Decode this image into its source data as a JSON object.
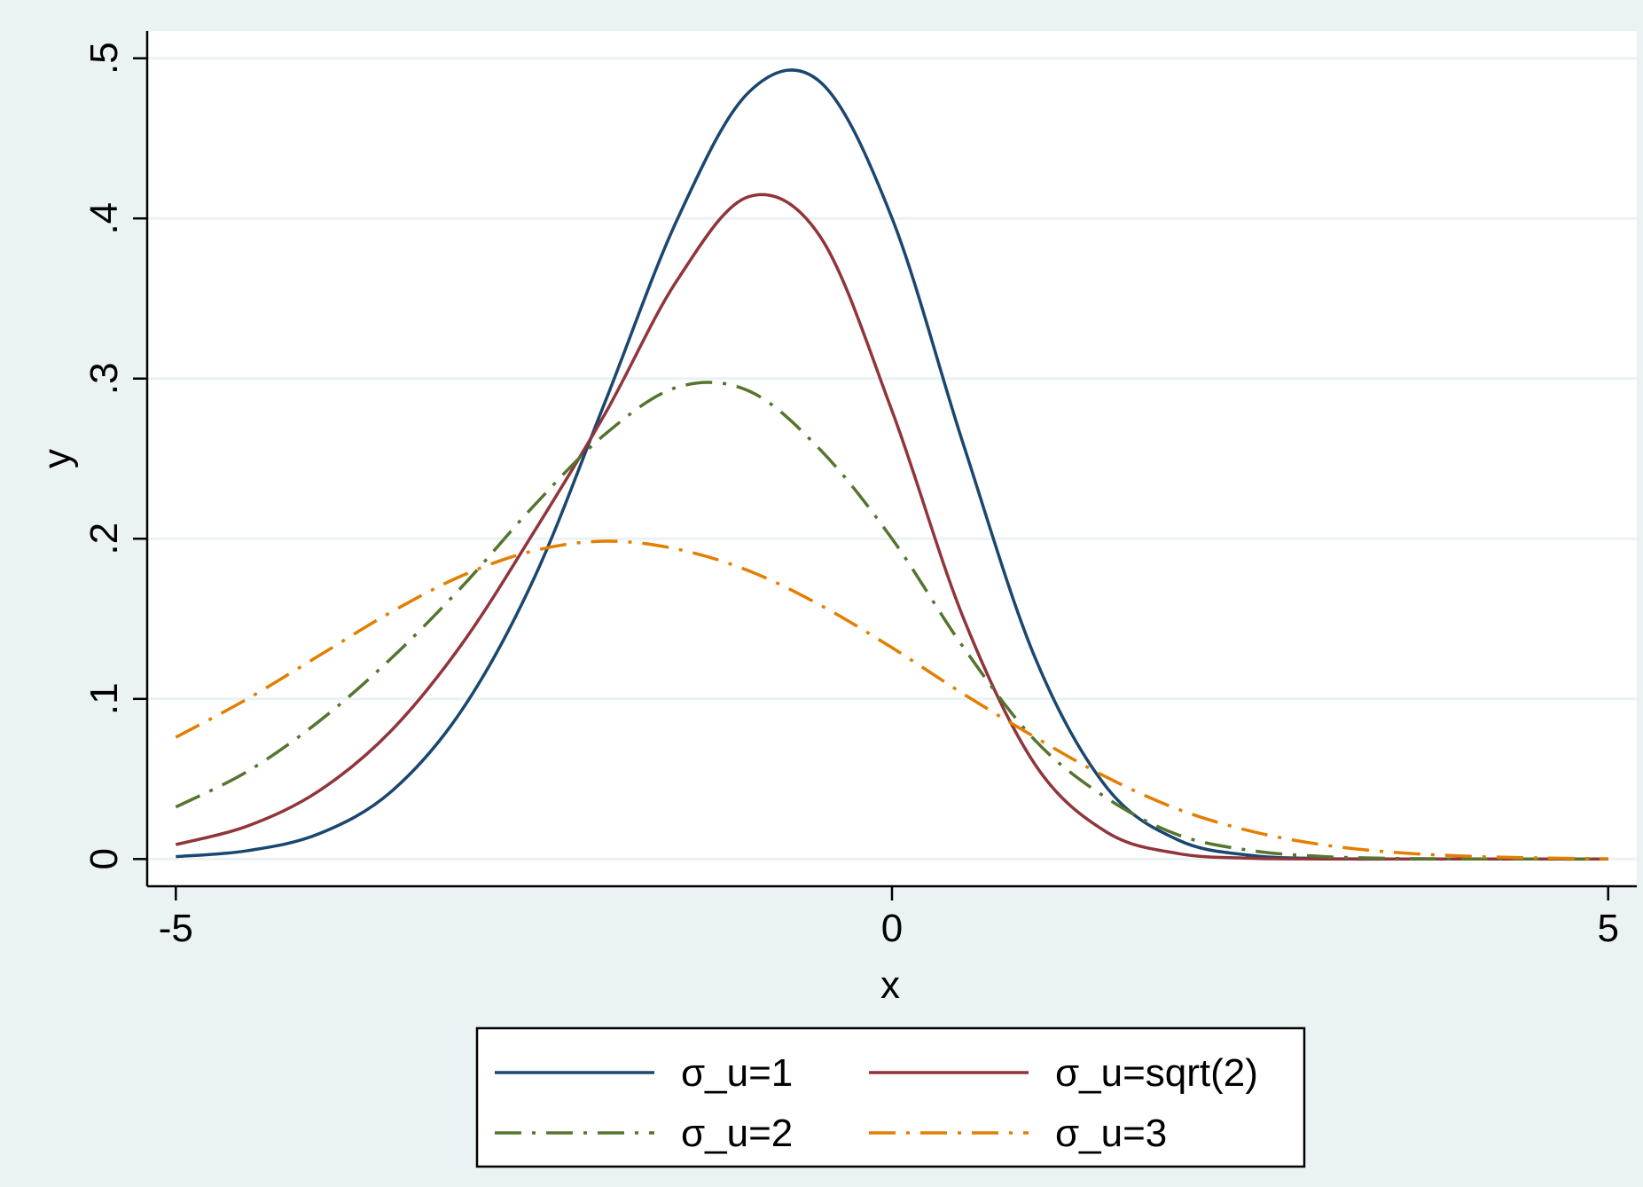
{
  "chart_data": {
    "type": "line",
    "title": "",
    "xlabel": "x",
    "ylabel": "y",
    "xlim": [
      -5.2,
      5.2
    ],
    "ylim": [
      -0.017,
      0.517
    ],
    "xticks": [
      {
        "value": -5,
        "label": "-5"
      },
      {
        "value": 0,
        "label": "0"
      },
      {
        "value": 5,
        "label": "5"
      }
    ],
    "yticks": [
      {
        "value": 0,
        "label": "0"
      },
      {
        "value": 0.1,
        "label": ".1"
      },
      {
        "value": 0.2,
        "label": ".2"
      },
      {
        "value": 0.3,
        "label": ".3"
      },
      {
        "value": 0.4,
        "label": ".4"
      },
      {
        "value": 0.5,
        "label": ".5"
      }
    ],
    "grid": true,
    "legend_position": "bottom",
    "series": [
      {
        "name": "σ_u=1",
        "color": "#1a476f",
        "style": "solid",
        "x": [
          -5,
          -4.5,
          -4,
          -3.5,
          -3,
          -2.5,
          -2,
          -1.5,
          -1,
          -0.5,
          0,
          0.5,
          1,
          1.5,
          2,
          2.5,
          3,
          3.5,
          4,
          4.5,
          5
        ],
        "y": [
          0.0015,
          0.0052,
          0.0158,
          0.0418,
          0.0934,
          0.1751,
          0.2861,
          0.3992,
          0.4788,
          0.4851,
          0.4002,
          0.2585,
          0.1255,
          0.0446,
          0.0118,
          0.0023,
          0.00034,
          4e-05,
          0,
          0,
          0
        ]
      },
      {
        "name": "σ_u=sqrt(2)",
        "color": "#90353b",
        "style": "solid",
        "x": [
          -5,
          -4.5,
          -4,
          -3.5,
          -3,
          -2.5,
          -2,
          -1.5,
          -1,
          -0.5,
          0,
          0.5,
          1,
          1.5,
          2,
          2.5,
          3,
          3.5,
          4,
          4.5,
          5
        ],
        "y": [
          0.009,
          0.0206,
          0.0426,
          0.0798,
          0.1346,
          0.2042,
          0.2785,
          0.3614,
          0.4136,
          0.3885,
          0.2799,
          0.1502,
          0.0589,
          0.0167,
          0.0034,
          0.0005,
          5e-05,
          0,
          0,
          0,
          0
        ]
      },
      {
        "name": "σ_u=2",
        "color": "#55752f",
        "style": "dashdot",
        "x": [
          -5,
          -4.5,
          -4,
          -3.5,
          -3,
          -2.5,
          -2,
          -1.5,
          -1,
          -0.5,
          0,
          0.5,
          1,
          1.5,
          2,
          2.5,
          3,
          3.5,
          4,
          4.5,
          5
        ],
        "y": [
          0.0325,
          0.0547,
          0.086,
          0.125,
          0.1703,
          0.2206,
          0.2655,
          0.2946,
          0.2923,
          0.2555,
          0.2,
          0.132,
          0.074,
          0.038,
          0.015,
          0.0054,
          0.0016,
          0.0004,
          0.0001,
          0,
          0
        ]
      },
      {
        "name": "σ_u=3",
        "color": "#e37e00",
        "style": "dashdot",
        "x": [
          -5,
          -4.5,
          -4,
          -3.5,
          -3,
          -2.5,
          -2,
          -1.5,
          -1,
          -0.5,
          0,
          0.5,
          1,
          1.5,
          2,
          2.5,
          3,
          3.5,
          4,
          4.5,
          5
        ],
        "y": [
          0.076,
          0.1,
          0.127,
          0.154,
          0.177,
          0.1925,
          0.1985,
          0.1935,
          0.18,
          0.1585,
          0.132,
          0.103,
          0.076,
          0.051,
          0.031,
          0.0175,
          0.009,
          0.0042,
          0.0018,
          0.0007,
          0.0002
        ]
      }
    ]
  }
}
